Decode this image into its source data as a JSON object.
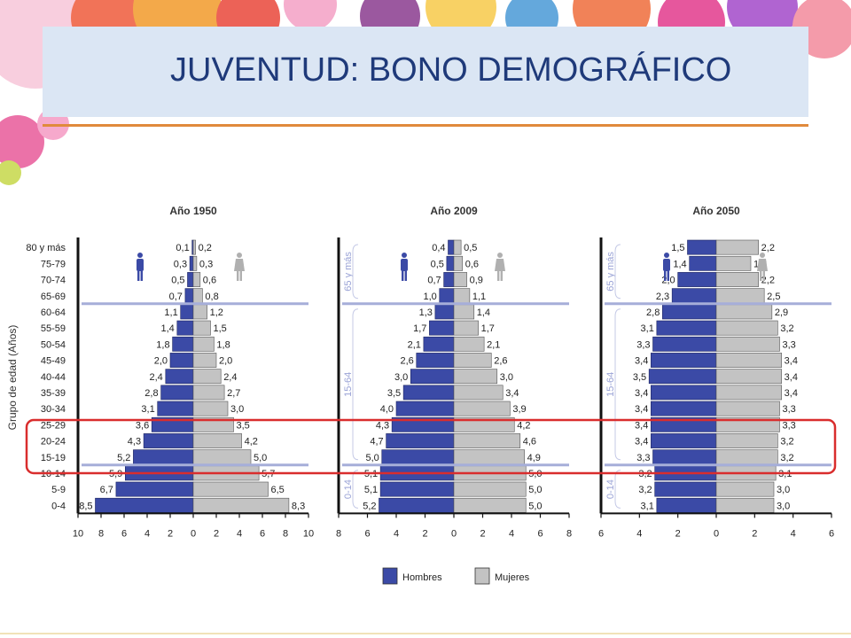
{
  "slide": {
    "title": "JUVENTUD: BONO DEMOGRÁFICO"
  },
  "colors": {
    "hombres": "#3b4aa6",
    "mujeres": "#c3c3c3",
    "separator": "#a6aed9",
    "highlight": "#d92d2d",
    "title": "#1f3a7a",
    "rule": "#e08a3c"
  },
  "icons": [
    "male-person-icon",
    "female-person-icon"
  ],
  "chart_data": {
    "type": "bar",
    "ylabel": "Grupo de edad (Años)",
    "categories": [
      "80 y más",
      "75-79",
      "70-74",
      "65-69",
      "60-64",
      "55-59",
      "50-54",
      "45-49",
      "40-44",
      "35-39",
      "30-34",
      "25-29",
      "20-24",
      "15-19",
      "10-14",
      "5-9",
      "0-4"
    ],
    "legend": {
      "position": "bottom",
      "items": [
        "Hombres",
        "Mujeres"
      ]
    },
    "highlighted_categories": [
      "25-29",
      "20-24",
      "15-19"
    ],
    "panels": [
      {
        "title": "Año 1950",
        "xlim": [
          -10,
          10
        ],
        "ticks": [
          "10",
          "8",
          "6",
          "4",
          "2",
          "0",
          "2",
          "4",
          "6",
          "8",
          "10"
        ],
        "bracket_labels": [],
        "series": [
          {
            "name": "Hombres",
            "values": [
              0.1,
              0.3,
              0.5,
              0.7,
              1.1,
              1.4,
              1.8,
              2.0,
              2.4,
              2.8,
              3.1,
              3.6,
              4.3,
              5.2,
              5.9,
              6.7,
              8.5
            ],
            "labels": [
              "0,1",
              "0,3",
              "0,5",
              "0,7",
              "1,1",
              "1,4",
              "1,8",
              "2,0",
              "2,4",
              "2,8",
              "3,1",
              "3,6",
              "4,3",
              "5,2",
              "5,9",
              "6,7",
              "8,5"
            ]
          },
          {
            "name": "Mujeres",
            "values": [
              0.2,
              0.3,
              0.6,
              0.8,
              1.2,
              1.5,
              1.8,
              2.0,
              2.4,
              2.7,
              3.0,
              3.5,
              4.2,
              5.0,
              5.7,
              6.5,
              8.3
            ],
            "labels": [
              "0,2",
              "0,3",
              "0,6",
              "0,8",
              "1,2",
              "1,5",
              "1,8",
              "2,0",
              "2,4",
              "2,7",
              "3,0",
              "3,5",
              "4,2",
              "5,0",
              "5,7",
              "6,5",
              "8,3"
            ]
          }
        ]
      },
      {
        "title": "Año 2009",
        "xlim": [
          -8,
          8
        ],
        "ticks": [
          "8",
          "6",
          "4",
          "2",
          "0",
          "2",
          "4",
          "6",
          "8"
        ],
        "bracket_labels": [
          "65 y más",
          "15-64",
          "0-14"
        ],
        "series": [
          {
            "name": "Hombres",
            "values": [
              0.4,
              0.5,
              0.7,
              1.0,
              1.3,
              1.7,
              2.1,
              2.6,
              3.0,
              3.5,
              4.0,
              4.3,
              4.7,
              5.0,
              5.1,
              5.1,
              5.2
            ],
            "labels": [
              "0,4",
              "0,5",
              "0,7",
              "1,0",
              "1,3",
              "1,7",
              "2,1",
              "2,6",
              "3,0",
              "3,5",
              "4,0",
              "4,3",
              "4,7",
              "5,0",
              "5,1",
              "5,1",
              "5,2"
            ]
          },
          {
            "name": "Mujeres",
            "values": [
              0.5,
              0.6,
              0.9,
              1.1,
              1.4,
              1.7,
              2.1,
              2.6,
              3.0,
              3.4,
              3.9,
              4.2,
              4.6,
              4.9,
              5.0,
              5.0,
              5.0
            ],
            "labels": [
              "0,5",
              "0,6",
              "0,9",
              "1,1",
              "1,4",
              "1,7",
              "2,1",
              "2,6",
              "3,0",
              "3,4",
              "3,9",
              "4,2",
              "4,6",
              "4,9",
              "5,0",
              "5,0",
              "5,0"
            ]
          }
        ]
      },
      {
        "title": "Año 2050",
        "xlim": [
          -6,
          6
        ],
        "ticks": [
          "6",
          "4",
          "2",
          "0",
          "2",
          "4",
          "6"
        ],
        "bracket_labels": [
          "65 y más",
          "15-64",
          "0-14"
        ],
        "series": [
          {
            "name": "Hombres",
            "values": [
              1.5,
              1.4,
              2.0,
              2.3,
              2.8,
              3.1,
              3.3,
              3.4,
              3.5,
              3.4,
              3.4,
              3.4,
              3.4,
              3.3,
              3.2,
              3.2,
              3.1
            ],
            "labels": [
              "1,5",
              "1,4",
              "2,0",
              "2,3",
              "2,8",
              "3,1",
              "3,3",
              "3,4",
              "3,5",
              "3,4",
              "3,4",
              "3,4",
              "3,4",
              "3,3",
              "3,2",
              "3,2",
              "3,1"
            ]
          },
          {
            "name": "Mujeres",
            "values": [
              2.2,
              1.8,
              2.2,
              2.5,
              2.9,
              3.2,
              3.3,
              3.4,
              3.4,
              3.4,
              3.3,
              3.3,
              3.2,
              3.2,
              3.1,
              3.0,
              3.0
            ],
            "labels": [
              "2,2",
              "1,8",
              "2,2",
              "2,5",
              "2,9",
              "3,2",
              "3,3",
              "3,4",
              "3,4",
              "3,4",
              "3,3",
              "3,3",
              "3,2",
              "3,2",
              "3,1",
              "3,0",
              "3,0"
            ]
          }
        ]
      }
    ]
  }
}
